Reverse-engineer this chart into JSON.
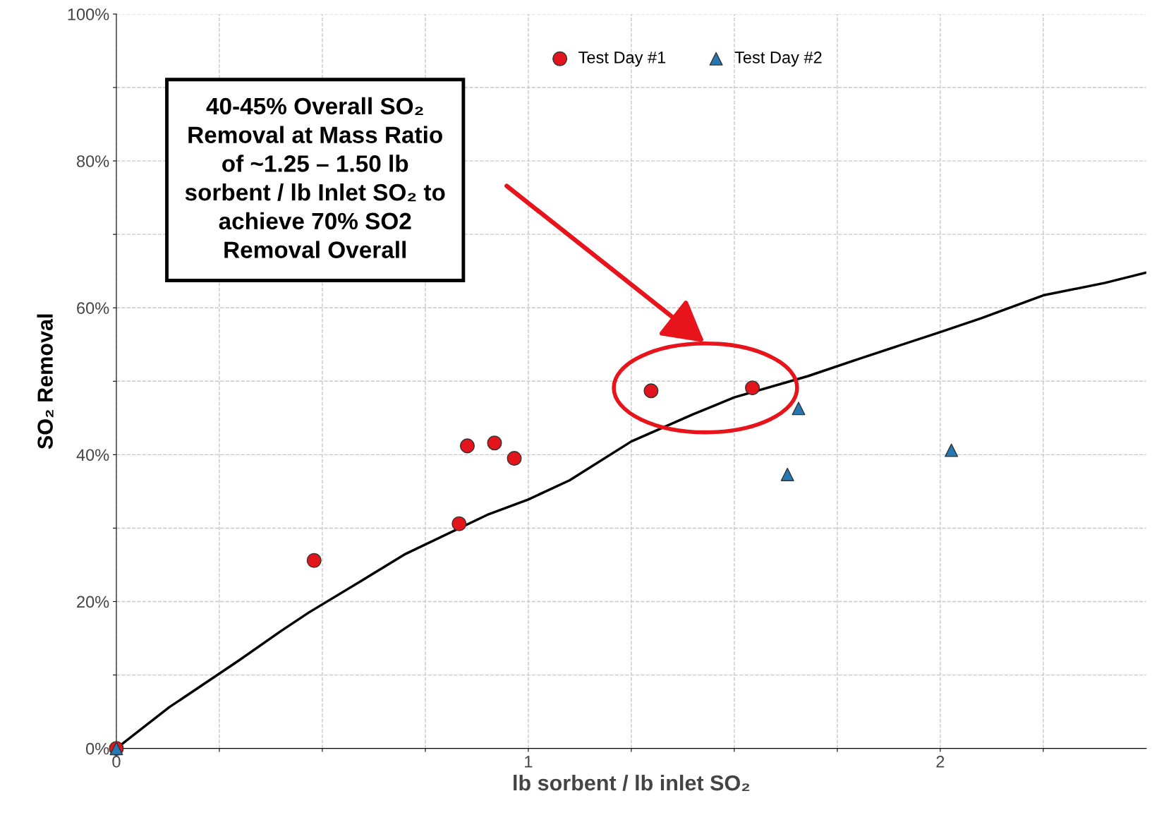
{
  "chart_data": {
    "type": "scatter",
    "xlabel": "lb sorbent / lb inlet SO₂",
    "ylabel": "SO₂ Removal",
    "xlim": [
      0,
      2.5
    ],
    "ylim": [
      0,
      100
    ],
    "xticks": [
      0,
      {
        "value": 0.25,
        "label": null
      },
      {
        "value": 0.5,
        "label": null
      },
      {
        "value": 0.75,
        "label": null
      },
      1,
      {
        "value": 1.25,
        "label": null
      },
      {
        "value": 1.5,
        "label": null
      },
      {
        "value": 1.75,
        "label": null
      },
      2,
      {
        "value": 2.25,
        "label": null
      }
    ],
    "yticks": [
      {
        "value": 0,
        "label": "0%"
      },
      {
        "value": 10,
        "label": null
      },
      {
        "value": 20,
        "label": "20%"
      },
      {
        "value": 30,
        "label": null
      },
      {
        "value": 40,
        "label": "40%"
      },
      {
        "value": 50,
        "label": null
      },
      {
        "value": 60,
        "label": "60%"
      },
      {
        "value": 70,
        "label": null
      },
      {
        "value": 80,
        "label": "80%"
      },
      {
        "value": 90,
        "label": null
      },
      {
        "value": 100,
        "label": "100%"
      }
    ],
    "grid": true,
    "legend": "top",
    "series": [
      {
        "name": "Test Day #1",
        "color": "#e3151c",
        "marker": "circle",
        "x": [
          0,
          0.48,
          0.832,
          0.852,
          0.918,
          0.966,
          1.298,
          1.544
        ],
        "values": [
          0,
          25.6,
          30.6,
          41.2,
          41.6,
          39.5,
          48.7,
          49.1
        ]
      },
      {
        "name": "Test Day #2",
        "color": "#2479b5",
        "marker": "triangle",
        "x": [
          0,
          1.656,
          1.629,
          2.027
        ],
        "values": [
          0,
          46.3,
          37.3,
          40.6
        ]
      },
      {
        "type": "line",
        "color": "#000000",
        "marker": "none",
        "line_style": "solid",
        "x": [
          0,
          0.128,
          0.2,
          0.298,
          0.4,
          0.467,
          0.6,
          0.699,
          0.9,
          1,
          1.1,
          1.25,
          1.4,
          1.5,
          1.679,
          1.8,
          2,
          2.1,
          2.25,
          2.4,
          2.5
        ],
        "values": [
          0,
          5.6,
          8.3,
          12,
          16,
          18.5,
          23,
          26.4,
          31.8,
          33.9,
          36.5,
          41.8,
          45.5,
          47.8,
          50.7,
          53,
          56.7,
          58.6,
          61.7,
          63.4,
          64.8
        ]
      }
    ],
    "annotations": [
      "40-45% Overall SO₂\nRemoval at Mass Ratio\nof ~1.25 – 1.50 lb\nsorbent / lb Inlet SO₂ to\nachieve 70% SO2\nRemoval Overall"
    ]
  }
}
